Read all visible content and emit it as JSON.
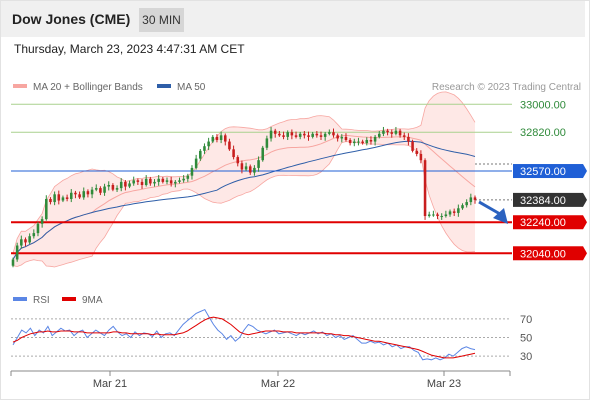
{
  "header": {
    "title": "Dow Jones (CME)",
    "timeframe_label": "30 MIN",
    "timestamp": "Thursday, March 23, 2023 4:47:31 AM CET"
  },
  "colors": {
    "bollinger": "#f7a6a1",
    "bollinger_fill": "#fde0dd",
    "ma50": "#2e5ea8",
    "candle_up": "#2f8a3a",
    "candle_down": "#c81e1e",
    "resistance_green": "#a9d18e",
    "resistance_blue": "#1f5fd6",
    "support_red": "#e00000",
    "current_price_tag": "#333333",
    "rsi": "#5b86e5",
    "rsi_ma": "#e00000",
    "forecast_arrow": "#2b62c0"
  },
  "chart_data": [
    {
      "type": "candlestick",
      "legend": [
        {
          "label": "MA 20 + Bollinger Bands",
          "color": "#f7a6a1"
        },
        {
          "label": "MA 50",
          "color": "#2e5ea8"
        }
      ],
      "watermark": "Research © 2023 Trading Central",
      "x_ticks": [
        "Mar 21",
        "Mar 22",
        "Mar 23"
      ],
      "ylim": [
        31900,
        33060
      ],
      "levels": [
        {
          "label": "33000.00",
          "value": 33000,
          "style": "resistance-green"
        },
        {
          "label": "32820.00",
          "value": 32820,
          "style": "resistance-green"
        },
        {
          "label": "32570.00",
          "value": 32570,
          "style": "pivot-blue"
        },
        {
          "label": "32384.00",
          "value": 32384,
          "style": "current-price"
        },
        {
          "label": "32240.00",
          "value": 32240,
          "style": "support-red"
        },
        {
          "label": "32040.00",
          "value": 32040,
          "style": "support-red"
        }
      ],
      "close": [
        32000,
        32090,
        32130,
        32110,
        32150,
        32170,
        32230,
        32260,
        32390,
        32370,
        32420,
        32380,
        32400,
        32390,
        32430,
        32420,
        32400,
        32440,
        32420,
        32450,
        32460,
        32430,
        32470,
        32480,
        32450,
        32460,
        32500,
        32470,
        32490,
        32510,
        32500,
        32480,
        32520,
        32490,
        32500,
        32520,
        32500,
        32510,
        32490,
        32500,
        32510,
        32520,
        32540,
        32590,
        32650,
        32700,
        32730,
        32760,
        32790,
        32770,
        32800,
        32760,
        32710,
        32660,
        32620,
        32580,
        32600,
        32560,
        32590,
        32640,
        32720,
        32780,
        32830,
        32810,
        32800,
        32790,
        32820,
        32800,
        32790,
        32810,
        32800,
        32790,
        32810,
        32800,
        32790,
        32810,
        32820,
        32800,
        32780,
        32790,
        32770,
        32750,
        32760,
        32760,
        32750,
        32770,
        32760,
        32790,
        32810,
        32830,
        32820,
        32810,
        32830,
        32800,
        32790,
        32760,
        32700,
        32680,
        32640,
        32280,
        32290,
        32290,
        32280,
        32280,
        32290,
        32310,
        32300,
        32330,
        32350,
        32370,
        32400,
        32384
      ]
    },
    {
      "type": "line",
      "legend": [
        {
          "label": "RSI",
          "color": "#5b86e5"
        },
        {
          "label": "9MA",
          "color": "#e00000"
        }
      ],
      "ylim": [
        15,
        85
      ],
      "y_ticks": [
        "70",
        "50",
        "30"
      ],
      "rsi": [
        42,
        50,
        58,
        55,
        60,
        52,
        58,
        55,
        62,
        52,
        56,
        60,
        57,
        58,
        52,
        56,
        58,
        50,
        54,
        58,
        55,
        52,
        58,
        62,
        56,
        52,
        54,
        50,
        56,
        52,
        55,
        54,
        51,
        57,
        50,
        54,
        55,
        52,
        58,
        64,
        68,
        72,
        76,
        78,
        80,
        72,
        64,
        58,
        54,
        48,
        52,
        46,
        50,
        58,
        64,
        62,
        58,
        56,
        54,
        56,
        58,
        54,
        55,
        56,
        54,
        52,
        55,
        53,
        55,
        57,
        54,
        56,
        52,
        54,
        50,
        52,
        48,
        50,
        52,
        48,
        44,
        44,
        46,
        44,
        45,
        42,
        44,
        40,
        42,
        38,
        40,
        40,
        36,
        34,
        26,
        27,
        26,
        28,
        26,
        28,
        32,
        30,
        34,
        38,
        40,
        38,
        37
      ],
      "ma9": [
        45,
        47,
        50,
        52,
        54,
        55,
        56,
        56,
        57,
        56,
        56,
        57,
        57,
        57,
        56,
        56,
        56,
        55,
        55,
        55,
        55,
        55,
        55,
        56,
        56,
        55,
        55,
        54,
        54,
        54,
        54,
        54,
        53,
        54,
        53,
        53,
        53,
        53,
        54,
        55,
        57,
        60,
        63,
        66,
        69,
        71,
        72,
        71,
        70,
        67,
        64,
        60,
        56,
        54,
        53,
        54,
        55,
        56,
        57,
        57,
        57,
        57,
        56,
        56,
        56,
        55,
        55,
        55,
        55,
        55,
        55,
        55,
        54,
        54,
        53,
        53,
        52,
        52,
        51,
        50,
        49,
        48,
        47,
        46,
        46,
        45,
        44,
        43,
        42,
        41,
        40,
        39,
        38,
        37,
        35,
        33,
        31,
        30,
        29,
        28,
        28,
        28,
        29,
        30,
        31,
        32,
        33
      ]
    }
  ]
}
